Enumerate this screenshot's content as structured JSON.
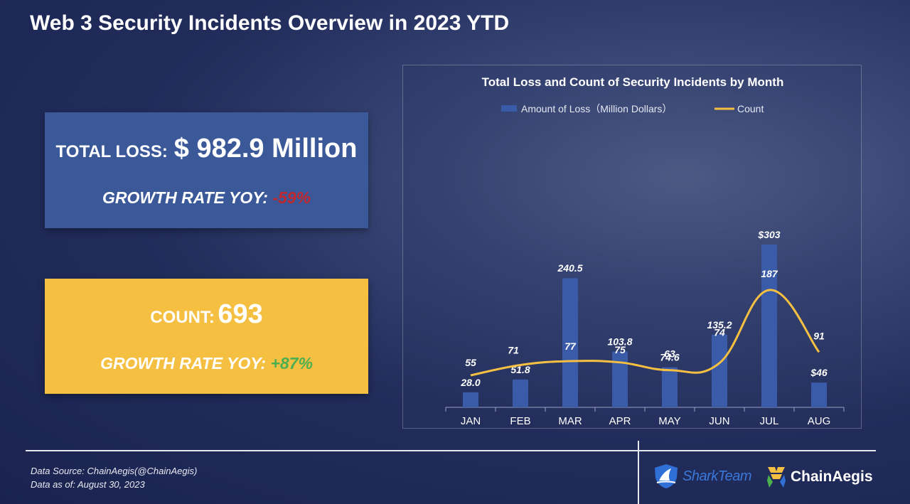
{
  "page": {
    "title": "Web 3 Security Incidents Overview in 2023 YTD"
  },
  "summary": {
    "loss": {
      "label": "TOTAL LOSS:",
      "value": "$ 982.9 Million",
      "growth_label": "GROWTH RATE YOY:",
      "growth_value": "-59%"
    },
    "count": {
      "label": "COUNT:",
      "value": "693",
      "growth_label": "GROWTH RATE YOY:",
      "growth_value": "+87%"
    }
  },
  "chart_data": {
    "type": "bar",
    "title": "Total Loss and Count of Security Incidents by Month",
    "categories": [
      "JAN",
      "FEB",
      "MAR",
      "APR",
      "MAY",
      "JUN",
      "JUL",
      "AUG"
    ],
    "series": [
      {
        "name": "Amount of Loss（Million Dollars）",
        "type": "bar",
        "values": [
          28.0,
          51.8,
          240.5,
          103.8,
          74.6,
          135.2,
          303,
          46
        ],
        "labels": [
          "28.0",
          "51.8",
          "240.5",
          "103.8",
          "74.6",
          "135.2",
          "$303",
          "$46"
        ],
        "color": "#3a5ba8"
      },
      {
        "name": "Count",
        "type": "line",
        "smooth": true,
        "values": [
          55,
          71,
          77,
          75,
          63,
          74,
          187,
          91
        ],
        "labels": [
          "55",
          "71",
          "77",
          "75",
          "63",
          "74",
          "187",
          "91"
        ],
        "color": "#f5bf42"
      }
    ],
    "legend": "top-center",
    "grid": false
  },
  "footer": {
    "source": "Data Source: ChainAegis(@ChainAegis)",
    "as_of": "Data as of: August 30, 2023"
  },
  "logos": {
    "shark": "SharkTeam",
    "chain": "ChainAegis"
  }
}
